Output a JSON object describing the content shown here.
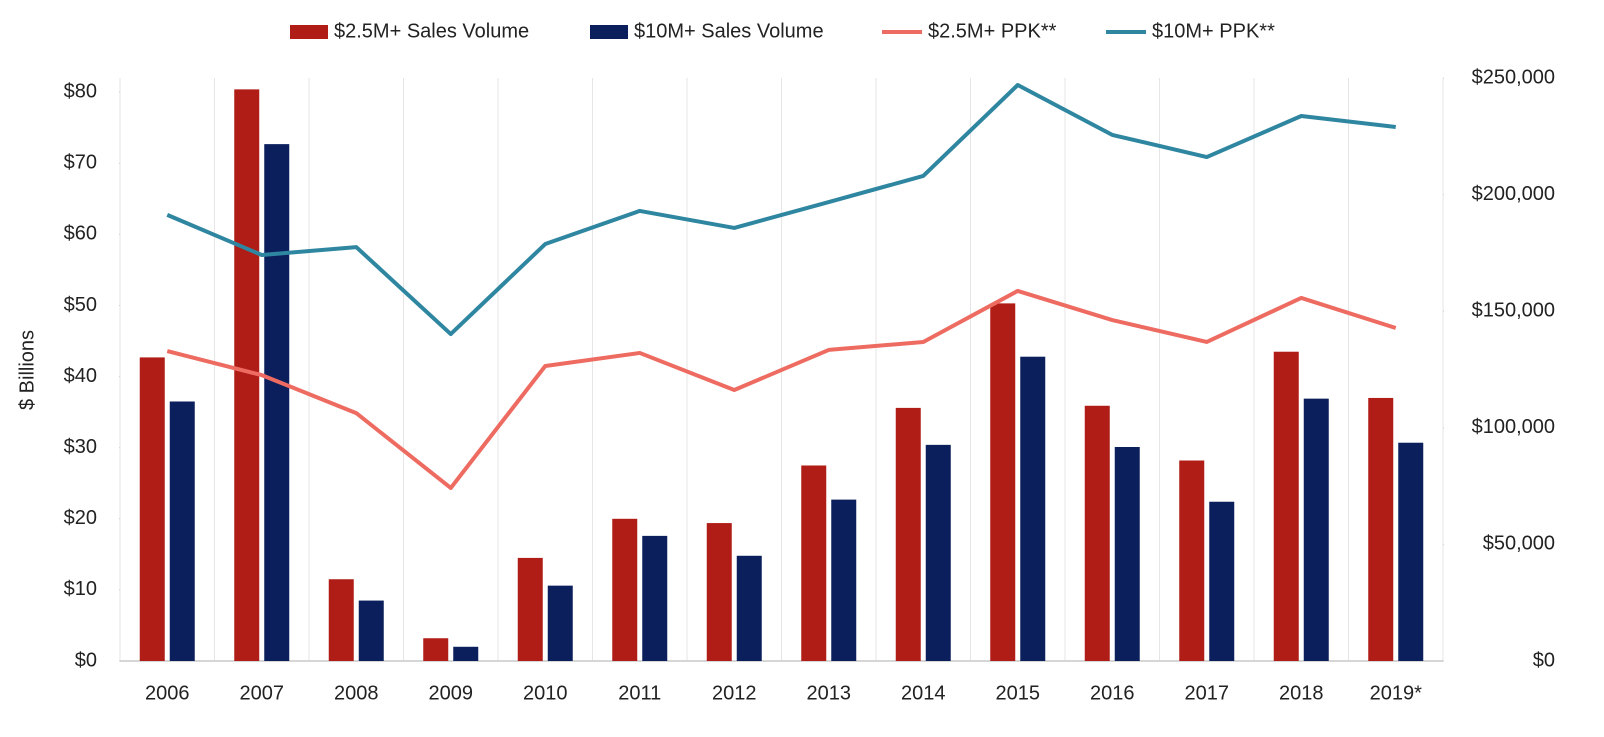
{
  "chart_data": {
    "type": "bar",
    "y_label": "$ Billions",
    "categories": [
      "2006",
      "2007",
      "2008",
      "2009",
      "2010",
      "2011",
      "2012",
      "2013",
      "2014",
      "2015",
      "2016",
      "2017",
      "2018",
      "2019*"
    ],
    "series": [
      {
        "name": "$2.5M+ Sales Volume",
        "type": "bar",
        "color": "#b01c16",
        "values": [
          42.7,
          80.4,
          11.5,
          3.2,
          14.5,
          20.0,
          19.4,
          27.5,
          35.6,
          50.3,
          35.9,
          28.2,
          43.5,
          37.0
        ]
      },
      {
        "name": "$10M+ Sales Volume",
        "type": "bar",
        "color": "#0b1f5c",
        "values": [
          36.5,
          72.7,
          8.5,
          2.0,
          10.6,
          17.6,
          14.8,
          22.7,
          30.4,
          42.8,
          30.1,
          22.4,
          36.9,
          30.7
        ]
      },
      {
        "name": "$2.5M+ PPK**",
        "type": "line",
        "axis": "y2",
        "color": "#ee6b61",
        "values": [
          132900,
          122600,
          106300,
          74200,
          126500,
          132100,
          116200,
          133400,
          136800,
          158700,
          146200,
          136800,
          155700,
          142800
        ]
      },
      {
        "name": "$10M+ PPK**",
        "type": "line",
        "axis": "y2",
        "color": "#2f86a0",
        "values": [
          191300,
          174100,
          177500,
          140200,
          178800,
          193000,
          185700,
          196800,
          208000,
          247000,
          225600,
          216100,
          233700,
          229000
        ]
      }
    ],
    "ylim": [
      0,
      82
    ],
    "yticks": [
      {
        "value": 0,
        "label": "$0"
      },
      {
        "value": 10,
        "label": "$10"
      },
      {
        "value": 20,
        "label": "$20"
      },
      {
        "value": 30,
        "label": "$30"
      },
      {
        "value": 40,
        "label": "$40"
      },
      {
        "value": 50,
        "label": "$50"
      },
      {
        "value": 60,
        "label": "$60"
      },
      {
        "value": 70,
        "label": "$70"
      },
      {
        "value": 80,
        "label": "$80"
      }
    ],
    "y2lim": [
      0,
      250000
    ],
    "y2ticks": [
      {
        "value": 0,
        "label": "$0"
      },
      {
        "value": 50000,
        "label": "$50,000"
      },
      {
        "value": 100000,
        "label": "$100,000"
      },
      {
        "value": 150000,
        "label": "$150,000"
      },
      {
        "value": 200000,
        "label": "$200,000"
      },
      {
        "value": 250000,
        "label": "$250,000"
      }
    ],
    "legend": "top",
    "grid": "vertical"
  }
}
